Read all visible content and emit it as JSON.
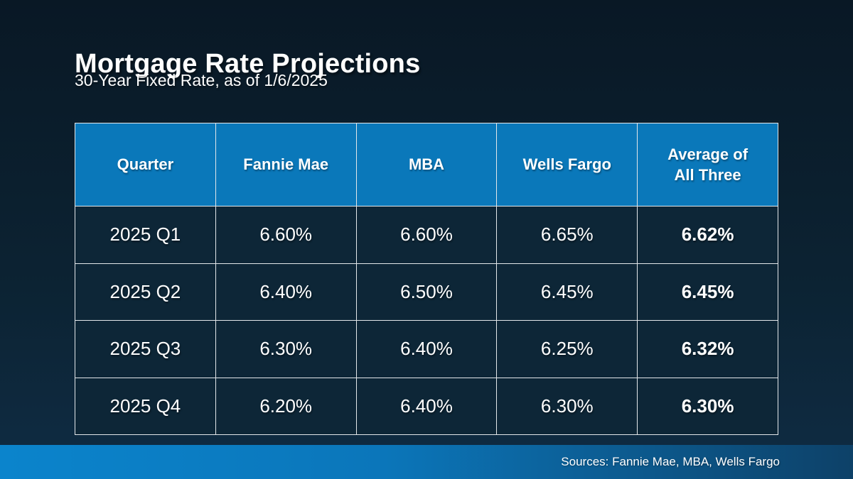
{
  "chart_data": {
    "type": "table",
    "title": "Mortgage Rate Projections",
    "subtitle": "30-Year Fixed Rate, as of 1/6/2025",
    "columns": [
      "Quarter",
      "Fannie Mae",
      "MBA",
      "Wells Fargo",
      "Average of All Three"
    ],
    "rows": [
      [
        "2025 Q1",
        "6.60%",
        "6.60%",
        "6.65%",
        "6.62%"
      ],
      [
        "2025 Q2",
        "6.40%",
        "6.50%",
        "6.45%",
        "6.45%"
      ],
      [
        "2025 Q3",
        "6.30%",
        "6.40%",
        "6.25%",
        "6.32%"
      ],
      [
        "2025 Q4",
        "6.20%",
        "6.40%",
        "6.30%",
        "6.30%"
      ]
    ],
    "notes": {
      "emphasis": "Last column (Average of All Three) rendered bold"
    }
  },
  "footer": {
    "sources": "Sources: Fannie Mae, MBA, Wells Fargo"
  },
  "colors": {
    "background_top": "#091825",
    "background_bottom": "#0f2c44",
    "header_blue": "#0a78ba",
    "cell_navy": "#0d2637",
    "grid_border": "#e3e7ea",
    "footer_gradient_left": "#0b84cc",
    "footer_gradient_right": "#0d4168",
    "text": "#ffffff"
  }
}
